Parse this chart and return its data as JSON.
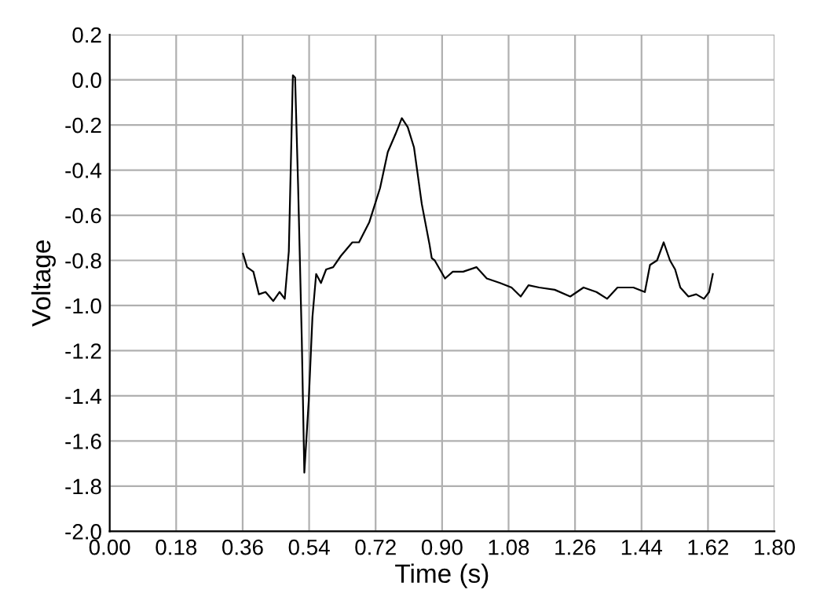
{
  "chart_data": {
    "type": "line",
    "xlabel": "Time (s)",
    "ylabel": "Voltage",
    "series": [
      {
        "color": "#000000",
        "x": [
          0.361,
          0.372,
          0.389,
          0.404,
          0.422,
          0.443,
          0.46,
          0.474,
          0.485,
          0.496,
          0.502,
          0.51,
          0.52,
          0.527,
          0.539,
          0.549,
          0.559,
          0.572,
          0.586,
          0.605,
          0.626,
          0.657,
          0.675,
          0.703,
          0.732,
          0.753,
          0.774,
          0.791,
          0.807,
          0.824,
          0.845,
          0.866,
          0.872,
          0.88,
          0.908,
          0.929,
          0.957,
          0.993,
          1.021,
          1.057,
          1.088,
          1.113,
          1.134,
          1.163,
          1.205,
          1.247,
          1.283,
          1.318,
          1.347,
          1.375,
          1.418,
          1.449,
          1.463,
          1.482,
          1.5,
          1.517,
          1.531,
          1.545,
          1.567,
          1.588,
          1.609,
          1.623,
          1.633
        ],
        "values": [
          -0.77,
          -0.83,
          -0.85,
          -0.95,
          -0.94,
          -0.98,
          -0.94,
          -0.97,
          -0.76,
          0.02,
          0.01,
          -0.46,
          -1.14,
          -1.74,
          -1.42,
          -1.05,
          -0.86,
          -0.9,
          -0.84,
          -0.83,
          -0.78,
          -0.72,
          -0.72,
          -0.63,
          -0.48,
          -0.32,
          -0.24,
          -0.17,
          -0.21,
          -0.3,
          -0.55,
          -0.73,
          -0.79,
          -0.8,
          -0.88,
          -0.85,
          -0.85,
          -0.83,
          -0.88,
          -0.9,
          -0.92,
          -0.96,
          -0.91,
          -0.92,
          -0.93,
          -0.96,
          -0.92,
          -0.94,
          -0.97,
          -0.92,
          -0.92,
          -0.94,
          -0.82,
          -0.8,
          -0.72,
          -0.8,
          -0.84,
          -0.92,
          -0.96,
          -0.95,
          -0.97,
          -0.94,
          -0.86
        ]
      }
    ],
    "xlim": [
      0,
      1.8
    ],
    "ylim": [
      -2.0,
      0.2
    ],
    "xticks": [
      {
        "value": 0,
        "label": "0.00"
      },
      {
        "value": 0.18,
        "label": "0.18"
      },
      {
        "value": 0.36,
        "label": "0.36"
      },
      {
        "value": 0.54,
        "label": "0.54"
      },
      {
        "value": 0.72,
        "label": "0.72"
      },
      {
        "value": 0.9,
        "label": "0.90"
      },
      {
        "value": 1.08,
        "label": "1.08"
      },
      {
        "value": 1.26,
        "label": "1.26"
      },
      {
        "value": 1.44,
        "label": "1.44"
      },
      {
        "value": 1.62,
        "label": "1.62"
      },
      {
        "value": 1.8,
        "label": "1.80"
      }
    ],
    "yticks": [
      {
        "value": 0.2,
        "label": "0.2"
      },
      {
        "value": 0,
        "label": "0.0"
      },
      {
        "value": -0.2,
        "label": "-0.2"
      },
      {
        "value": -0.4,
        "label": "-0.4"
      },
      {
        "value": -0.6,
        "label": "-0.6"
      },
      {
        "value": -0.8,
        "label": "-0.8"
      },
      {
        "value": -1.0,
        "label": "-1.0"
      },
      {
        "value": -1.2,
        "label": "-1.2"
      },
      {
        "value": -1.4,
        "label": "-1.4"
      },
      {
        "value": -1.6,
        "label": "-1.6"
      },
      {
        "value": -1.8,
        "label": "-1.8"
      },
      {
        "value": -2.0,
        "label": "-2.0"
      }
    ],
    "grid": true,
    "marker": "none",
    "line_style": "solid"
  }
}
